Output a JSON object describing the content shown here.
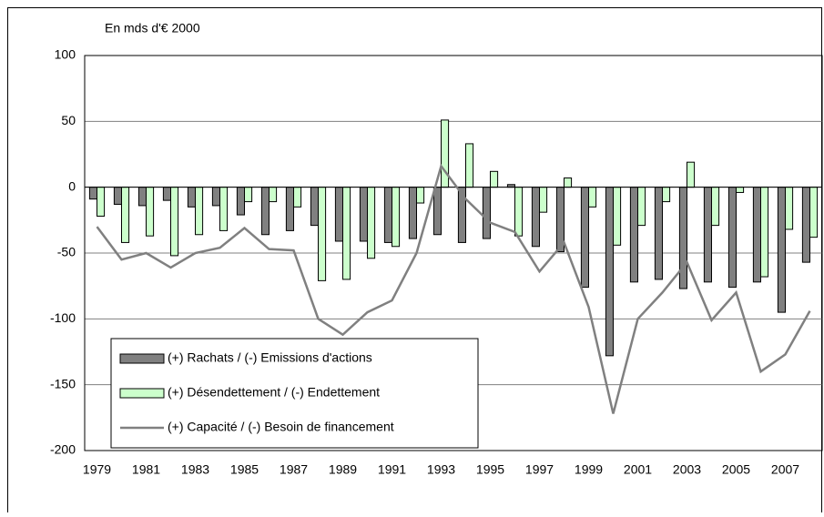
{
  "chart_data": {
    "type": "bar_line",
    "subtitle": "En mds d'€ 2000",
    "categories": [
      "1979",
      null,
      "1981",
      null,
      "1983",
      null,
      "1985",
      null,
      "1987",
      null,
      "1989",
      null,
      "1991",
      null,
      "1993",
      null,
      "1995",
      null,
      "1997",
      null,
      "1999",
      null,
      "2001",
      null,
      "2003",
      null,
      "2005",
      null,
      "2007",
      null
    ],
    "series": [
      {
        "name": "(+) Rachats / (-) Emissions d'actions",
        "kind": "bar",
        "color": "#808080",
        "values": [
          -9,
          -13,
          -14,
          -10,
          -15,
          -14,
          -21,
          -36,
          -33,
          -29,
          -41,
          -41,
          -42,
          -39,
          -36,
          -42,
          -39,
          2,
          -45,
          -49,
          -76,
          -128,
          -72,
          -70,
          -77,
          -72,
          -76,
          -72,
          -95,
          -57
        ]
      },
      {
        "name": "(+) Désendettement / (-) Endettement",
        "kind": "bar",
        "color": "#ccffcc",
        "values": [
          -22,
          -42,
          -37,
          -52,
          -36,
          -33,
          -11,
          -11,
          -15,
          -71,
          -70,
          -54,
          -45,
          -12,
          51,
          33,
          12,
          -37,
          -19,
          7,
          -15,
          -44,
          -29,
          -11,
          19,
          -29,
          -4,
          -68,
          -32,
          -38
        ]
      },
      {
        "name": "(+) Capacité / (-) Besoin de financement",
        "kind": "line",
        "color": "#808080",
        "values": [
          -30,
          -55,
          -50,
          -61,
          -50,
          -46,
          -31,
          -47,
          -48,
          -100,
          -112,
          -95,
          -86,
          -50,
          16,
          -9,
          -27,
          -34,
          -64,
          -42,
          -91,
          -172,
          -100,
          -80,
          -57,
          -101,
          -80,
          -140,
          -127,
          -94
        ]
      }
    ],
    "ylim": [
      -200,
      100
    ],
    "yticks": [
      -200,
      -150,
      -100,
      -50,
      0,
      50,
      100
    ],
    "grid": true,
    "legend": "lower left"
  }
}
